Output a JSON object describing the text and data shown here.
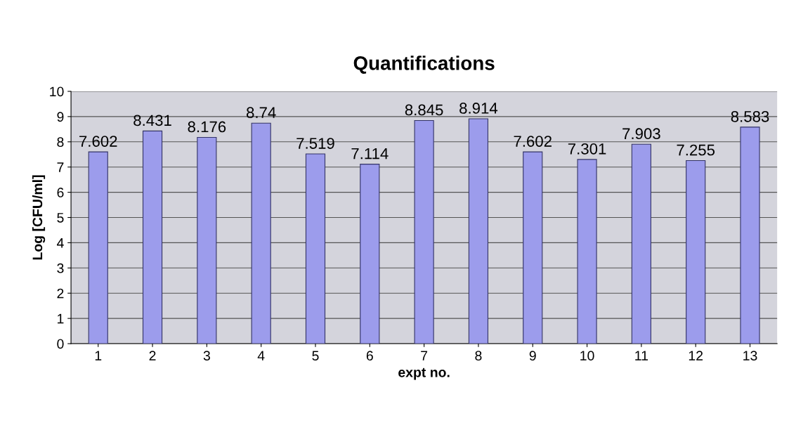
{
  "chart_data": {
    "type": "bar",
    "title": "Quantifications",
    "xlabel": "expt no.",
    "ylabel": "Log [CFU/ml]",
    "categories": [
      "1",
      "2",
      "3",
      "4",
      "5",
      "6",
      "7",
      "8",
      "9",
      "10",
      "11",
      "12",
      "13"
    ],
    "values": [
      7.602,
      8.431,
      8.176,
      8.74,
      7.519,
      7.114,
      8.845,
      8.914,
      7.602,
      7.301,
      7.903,
      7.255,
      8.583
    ],
    "color": "#9c9cec",
    "data_labels": true,
    "ylim": [
      0,
      10
    ],
    "yticks": [
      0,
      1,
      2,
      3,
      4,
      5,
      6,
      7,
      8,
      9,
      10
    ],
    "grid": "y",
    "legend": false
  }
}
